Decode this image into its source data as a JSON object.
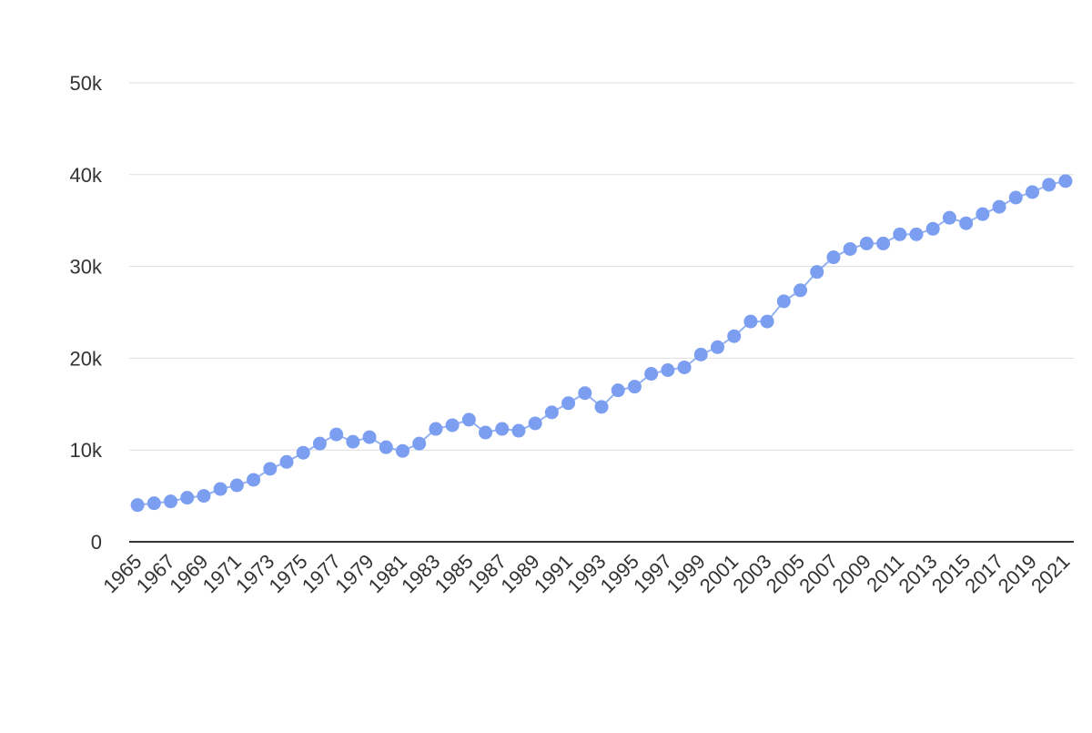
{
  "chart_data": {
    "type": "line",
    "categories": [
      "1965",
      null,
      "1967",
      null,
      "1969",
      null,
      "1971",
      null,
      "1973",
      null,
      "1975",
      null,
      "1977",
      null,
      "1979",
      null,
      "1981",
      null,
      "1983",
      null,
      "1985",
      null,
      "1987",
      null,
      "1989",
      null,
      "1991",
      null,
      "1993",
      null,
      "1995",
      null,
      "1997",
      null,
      "1999",
      null,
      "2001",
      null,
      "2003",
      null,
      "2005",
      null,
      "2007",
      null,
      "2009",
      null,
      "2011",
      null,
      "2013",
      null,
      "2015",
      null,
      "2017",
      null,
      "2019",
      null,
      "2021"
    ],
    "values": [
      4000,
      4200,
      4400,
      4800,
      5000,
      5750,
      6150,
      6750,
      7950,
      8700,
      9700,
      10700,
      11700,
      10900,
      11400,
      10300,
      9900,
      10700,
      12300,
      12700,
      13300,
      11900,
      12300,
      12100,
      12900,
      14100,
      15100,
      16200,
      14700,
      16500,
      16900,
      18300,
      18700,
      19000,
      20400,
      21200,
      22400,
      24000,
      24000,
      26200,
      27400,
      29400,
      31000,
      31900,
      32500,
      32500,
      33500,
      33500,
      34100,
      35300,
      34700,
      35700,
      36500,
      37500,
      38100,
      38900,
      39300
    ],
    "color": "#7b9ef0",
    "ylim": [
      0,
      50000
    ],
    "yticks": [
      0,
      {
        "value": 10000,
        "label": "10k"
      },
      {
        "value": 20000,
        "label": "20k"
      },
      {
        "value": 30000,
        "label": "30k"
      },
      {
        "value": 40000,
        "label": "40k"
      },
      {
        "value": 50000,
        "label": "50k"
      }
    ],
    "grid": true
  }
}
